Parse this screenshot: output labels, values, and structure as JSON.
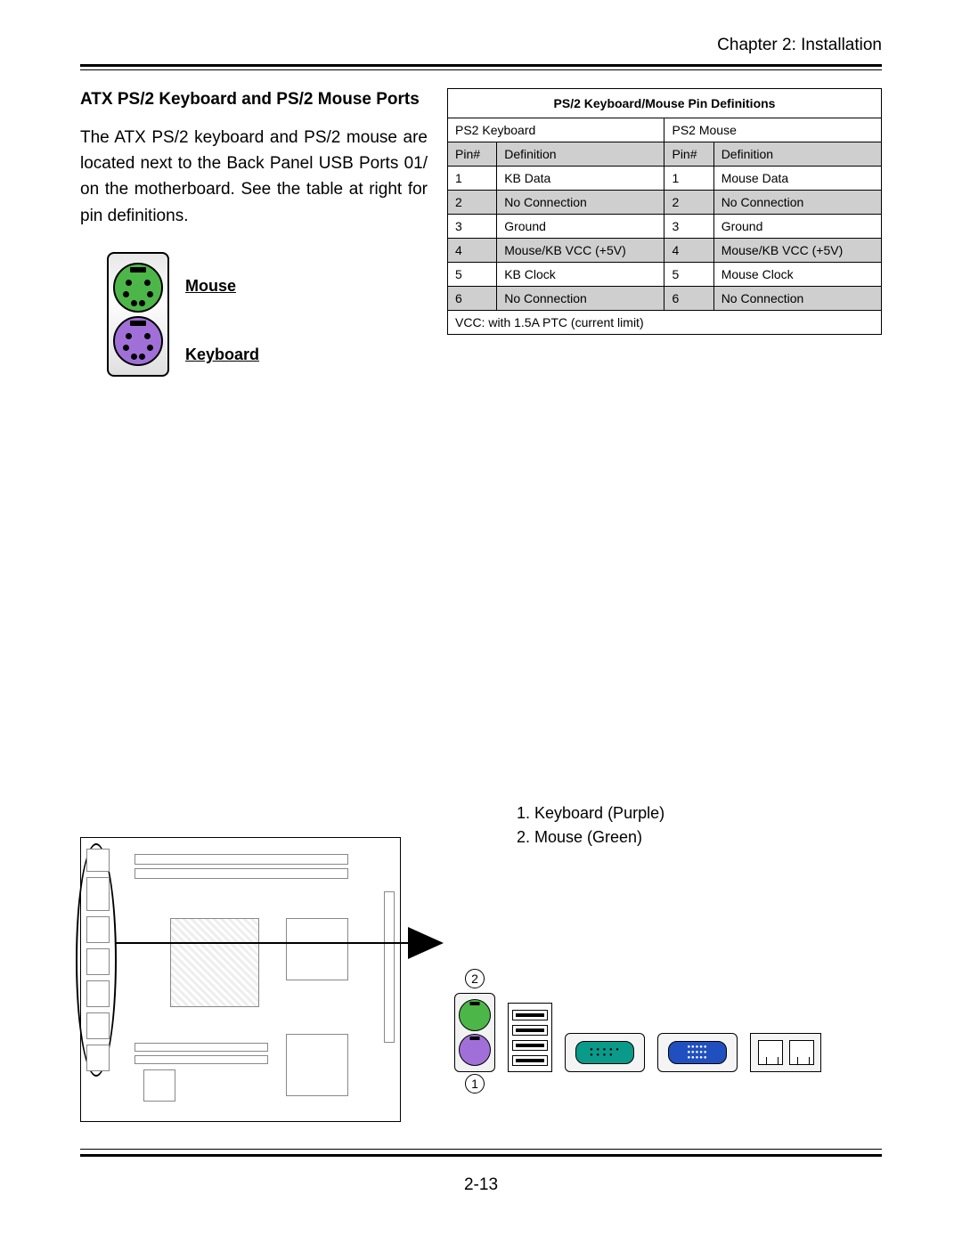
{
  "chapter_header": "Chapter 2: Installation",
  "section_title": "ATX PS/2 Keyboard and PS/2 Mouse Ports",
  "body_text": "The ATX PS/2 keyboard and PS/2 mouse are located next to the Back Panel USB Ports 01/ on the mother­board. See the table at right for pin definitions.",
  "ps2_labels": {
    "mouse": "Mouse",
    "keyboard": "Keyboard"
  },
  "table": {
    "title": "PS/2 Keyboard/Mouse Pin Definitions",
    "kb_header": "PS2 Keyboard",
    "ms_header": "PS2 Mouse",
    "col_pin": "Pin#",
    "col_def": "Definition",
    "rows": [
      {
        "kb_pin": "1",
        "kb_def": "KB Data",
        "ms_pin": "1",
        "ms_def": "Mouse Data",
        "grey": false
      },
      {
        "kb_pin": "2",
        "kb_def": "No Connection",
        "ms_pin": "2",
        "ms_def": "No Connection",
        "grey": true
      },
      {
        "kb_pin": "3",
        "kb_def": "Ground",
        "ms_pin": "3",
        "ms_def": "Ground",
        "grey": false
      },
      {
        "kb_pin": "4",
        "kb_def": "Mouse/KB VCC (+5V)",
        "ms_pin": "4",
        "ms_def": "Mouse/KB VCC (+5V)",
        "grey": true
      },
      {
        "kb_pin": "5",
        "kb_def": "KB Clock",
        "ms_pin": "5",
        "ms_def": "Mouse Clock",
        "grey": false
      },
      {
        "kb_pin": "6",
        "kb_def": "No Connection",
        "ms_pin": "6",
        "ms_def": "No Connection",
        "grey": true
      }
    ],
    "footer": "VCC: with 1.5A PTC (current limit)"
  },
  "legend": {
    "line1": "1. Keyboard (Purple)",
    "line2": "2. Mouse (Green)"
  },
  "circled": {
    "one": "1",
    "two": "2"
  },
  "page_number": "2-13",
  "colors": {
    "mouse_green": "#4cb648",
    "keyboard_purple": "#a070d8",
    "serial_teal": "#0a9a8a",
    "vga_blue": "#2050c0",
    "grey_row": "#cfcfcf"
  }
}
